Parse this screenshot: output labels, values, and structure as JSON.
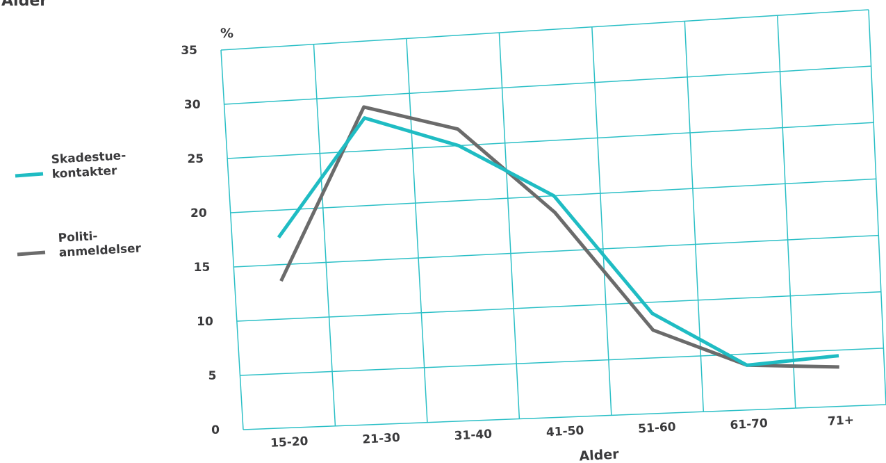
{
  "chart_data": {
    "type": "line",
    "title": "Alder",
    "xlabel": "Alder",
    "ylabel": "%",
    "categories": [
      "15-20",
      "21-30",
      "31-40",
      "41-50",
      "51-60",
      "61-70",
      "71+"
    ],
    "y_ticks": [
      "0",
      "5",
      "10",
      "15",
      "20",
      "25",
      "30",
      "35"
    ],
    "ylim": [
      0,
      35
    ],
    "grid": true,
    "legend_position": "left",
    "series": [
      {
        "name": "Skadestue-\nkontakter",
        "legend_lines": [
          "Skadestue-",
          "kontakter"
        ],
        "color": "#1fbcc3",
        "values": [
          17.5,
          28,
          25,
          20,
          9,
          4,
          4.5
        ]
      },
      {
        "name": "Politi-\nanmeldelser",
        "legend_lines": [
          "Politi-",
          "anmeldelser"
        ],
        "color": "#6b6b6b",
        "values": [
          13.5,
          29,
          26.5,
          18.5,
          7.5,
          4,
          3.5
        ]
      }
    ]
  },
  "colors": {
    "grid": "#2bbfc6",
    "text": "#3a3a3c"
  }
}
